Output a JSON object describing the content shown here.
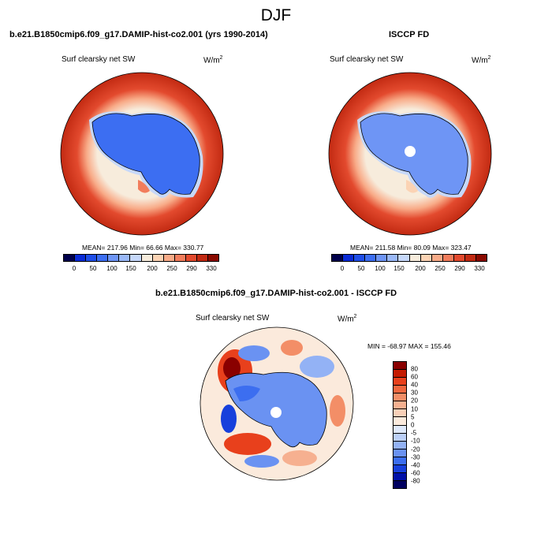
{
  "figure": {
    "title": "DJF"
  },
  "panels": [
    {
      "id": "model",
      "title": "b.e21.B1850cmip6.f09_g17.DAMIP-hist-co2.001 (yrs 1990-2014)",
      "variable": "Surf clearsky net SW",
      "units": "W/m",
      "units_sup": "2",
      "stats": "MEAN= 217.96  Min=  66.66  Max= 330.77"
    },
    {
      "id": "obs",
      "title": "ISCCP FD",
      "variable": "Surf clearsky net SW",
      "units": "W/m",
      "units_sup": "2",
      "stats": "MEAN= 211.58  Min=  80.09  Max= 323.47"
    },
    {
      "id": "diff",
      "title": "b.e21.B1850cmip6.f09_g17.DAMIP-hist-co2.001 - ISCCP FD",
      "variable": "Surf clearsky net SW",
      "units": "W/m",
      "units_sup": "2",
      "stats": "MIN = -68.97 MAX = 155.46"
    }
  ],
  "abs_colorbar": {
    "ticks": [
      "0",
      "50",
      "100",
      "150",
      "200",
      "250",
      "290",
      "330"
    ],
    "colors": [
      "#00004c",
      "#0a2bd6",
      "#1f4ee8",
      "#3c6ef2",
      "#6e95f5",
      "#9ab8f7",
      "#c6d8fa",
      "#f7ecdc",
      "#fbd3b4",
      "#f8ab88",
      "#f27d5c",
      "#e34a2e",
      "#c22a12",
      "#8a0a00"
    ]
  },
  "diff_colorbar": {
    "ticks": [
      "80",
      "60",
      "40",
      "30",
      "20",
      "10",
      "5",
      "0",
      "-5",
      "-10",
      "-20",
      "-30",
      "-40",
      "-60",
      "-80"
    ],
    "colors": [
      "#8a0000",
      "#c41a00",
      "#e8401c",
      "#f0673f",
      "#f38e67",
      "#f6b090",
      "#f9d0b8",
      "#fbeadc",
      "#dfe9fb",
      "#bcd0f8",
      "#93b2f5",
      "#6a92f2",
      "#3c6ef0",
      "#1740dc",
      "#0010a8",
      "#000060"
    ]
  }
}
